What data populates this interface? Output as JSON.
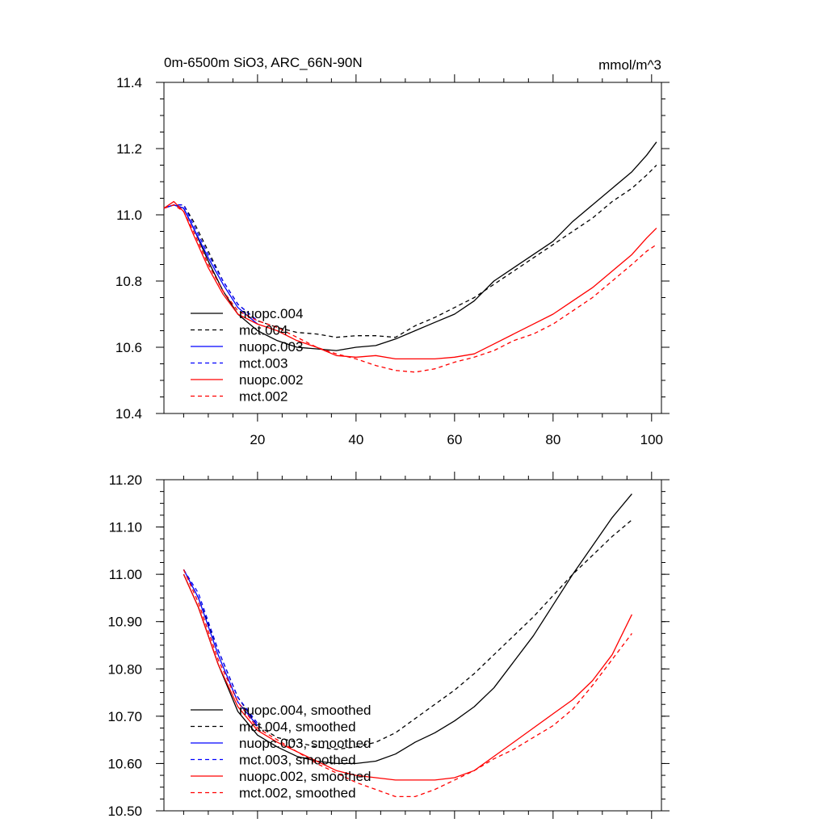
{
  "chart_data": [
    {
      "type": "line",
      "title": "0m-6500m SiO3, ARC_66N-90N",
      "units": "mmol/m^3",
      "xlabel": "",
      "ylabel": "",
      "xlim": [
        1,
        102
      ],
      "ylim": [
        10.4,
        11.4
      ],
      "xticks": [
        20,
        40,
        60,
        80,
        100
      ],
      "xtick_labels": [
        "20",
        "40",
        "60",
        "80",
        "100"
      ],
      "yticks": [
        10.4,
        10.6,
        10.8,
        11.0,
        11.2,
        11.4
      ],
      "ytick_labels": [
        "10.4",
        "10.6",
        "10.8",
        "11.0",
        "11.2",
        "11.4"
      ],
      "grid": false,
      "legend_position": "lower-left",
      "series": [
        {
          "name": "nuopc.004",
          "color": "#000000",
          "dash": "solid",
          "x": [
            1,
            3,
            5,
            7,
            10,
            13,
            16,
            20,
            24,
            28,
            32,
            36,
            40,
            44,
            48,
            52,
            56,
            60,
            64,
            68,
            72,
            76,
            80,
            84,
            88,
            92,
            96,
            99,
            101
          ],
          "y": [
            11.02,
            11.03,
            11.02,
            10.96,
            10.86,
            10.77,
            10.7,
            10.65,
            10.62,
            10.6,
            10.595,
            10.59,
            10.6,
            10.605,
            10.625,
            10.65,
            10.675,
            10.7,
            10.74,
            10.8,
            10.84,
            10.88,
            10.92,
            10.98,
            11.03,
            11.08,
            11.13,
            11.18,
            11.22
          ]
        },
        {
          "name": "mct.004",
          "color": "#000000",
          "dash": "dashed",
          "x": [
            1,
            3,
            5,
            7,
            10,
            13,
            16,
            20,
            24,
            28,
            32,
            36,
            40,
            44,
            48,
            52,
            56,
            60,
            64,
            68,
            72,
            76,
            80,
            84,
            88,
            92,
            96,
            99,
            101
          ],
          "y": [
            11.02,
            11.03,
            11.03,
            10.98,
            10.89,
            10.8,
            10.73,
            10.68,
            10.66,
            10.645,
            10.64,
            10.63,
            10.635,
            10.635,
            10.63,
            10.665,
            10.69,
            10.72,
            10.75,
            10.79,
            10.83,
            10.87,
            10.91,
            10.95,
            10.99,
            11.04,
            11.08,
            11.12,
            11.15
          ]
        },
        {
          "name": "nuopc.003",
          "color": "#0000ff",
          "dash": "solid",
          "x": [
            1,
            3,
            5,
            7,
            10,
            13,
            16,
            20
          ],
          "y": [
            11.02,
            11.03,
            11.02,
            10.96,
            10.87,
            10.79,
            10.72,
            10.67
          ]
        },
        {
          "name": "mct.003",
          "color": "#0000ff",
          "dash": "dashed",
          "x": [
            1,
            3,
            5,
            7,
            10,
            13,
            16,
            20
          ],
          "y": [
            11.02,
            11.03,
            11.03,
            10.97,
            10.88,
            10.8,
            10.73,
            10.68
          ]
        },
        {
          "name": "nuopc.002",
          "color": "#ff0000",
          "dash": "solid",
          "x": [
            1,
            3,
            5,
            7,
            10,
            13,
            16,
            20,
            24,
            28,
            32,
            36,
            40,
            44,
            48,
            52,
            56,
            60,
            64,
            68,
            72,
            76,
            80,
            84,
            88,
            92,
            96,
            99,
            101
          ],
          "y": [
            11.02,
            11.04,
            11.01,
            10.94,
            10.84,
            10.76,
            10.7,
            10.67,
            10.65,
            10.62,
            10.6,
            10.575,
            10.57,
            10.575,
            10.565,
            10.565,
            10.565,
            10.57,
            10.58,
            10.61,
            10.64,
            10.67,
            10.7,
            10.74,
            10.78,
            10.83,
            10.88,
            10.93,
            10.96
          ]
        },
        {
          "name": "mct.002",
          "color": "#ff0000",
          "dash": "dashed",
          "x": [
            1,
            3,
            5,
            7,
            10,
            13,
            16,
            20,
            24,
            28,
            32,
            36,
            40,
            44,
            48,
            52,
            56,
            60,
            64,
            68,
            72,
            76,
            80,
            84,
            88,
            92,
            96,
            99,
            101
          ],
          "y": [
            11.02,
            11.03,
            11.01,
            10.95,
            10.85,
            10.77,
            10.71,
            10.68,
            10.66,
            10.63,
            10.6,
            10.58,
            10.565,
            10.545,
            10.53,
            10.525,
            10.535,
            10.555,
            10.57,
            10.59,
            10.62,
            10.64,
            10.67,
            10.71,
            10.75,
            10.8,
            10.85,
            10.89,
            10.91
          ]
        }
      ]
    },
    {
      "type": "line",
      "title": "",
      "xlabel": "",
      "ylabel": "",
      "xlim": [
        1,
        102
      ],
      "ylim": [
        10.5,
        11.2
      ],
      "xticks": [
        20,
        40,
        60,
        80,
        100
      ],
      "xtick_labels": [],
      "yticks": [
        10.5,
        10.6,
        10.7,
        10.8,
        10.9,
        11.0,
        11.1,
        11.2
      ],
      "ytick_labels": [
        "10.50",
        "10.60",
        "10.70",
        "10.80",
        "10.90",
        "11.00",
        "11.10",
        "11.20"
      ],
      "grid": false,
      "legend_position": "lower-left",
      "series": [
        {
          "name": "nuopc.004, smoothed",
          "color": "#000000",
          "dash": "solid",
          "x": [
            5,
            8,
            12,
            16,
            20,
            24,
            28,
            32,
            36,
            40,
            44,
            48,
            52,
            56,
            60,
            64,
            68,
            72,
            76,
            80,
            84,
            88,
            92,
            96
          ],
          "y": [
            11.0,
            10.93,
            10.81,
            10.71,
            10.66,
            10.635,
            10.615,
            10.605,
            10.6,
            10.6,
            10.605,
            10.62,
            10.645,
            10.665,
            10.69,
            10.72,
            10.76,
            10.815,
            10.87,
            10.935,
            11.0,
            11.06,
            11.12,
            11.17
          ]
        },
        {
          "name": "mct.004, smoothed",
          "color": "#000000",
          "dash": "dashed",
          "x": [
            5,
            8,
            12,
            16,
            20,
            24,
            28,
            32,
            36,
            40,
            44,
            48,
            52,
            56,
            60,
            64,
            68,
            72,
            76,
            80,
            84,
            88,
            92,
            96
          ],
          "y": [
            11.01,
            10.95,
            10.84,
            10.74,
            10.68,
            10.655,
            10.645,
            10.635,
            10.63,
            10.635,
            10.645,
            10.665,
            10.695,
            10.725,
            10.755,
            10.79,
            10.83,
            10.87,
            10.91,
            10.955,
            11.0,
            11.04,
            11.08,
            11.115
          ]
        },
        {
          "name": "nuopc.003, smoothed",
          "color": "#0000ff",
          "dash": "solid",
          "x": [
            5,
            8,
            12,
            16,
            20
          ],
          "y": [
            11.01,
            10.95,
            10.83,
            10.73,
            10.68
          ]
        },
        {
          "name": "mct.003, smoothed",
          "color": "#0000ff",
          "dash": "dashed",
          "x": [
            5,
            8,
            12,
            16,
            20
          ],
          "y": [
            11.01,
            10.96,
            10.84,
            10.74,
            10.685
          ]
        },
        {
          "name": "nuopc.002, smoothed",
          "color": "#ff0000",
          "dash": "solid",
          "x": [
            5,
            8,
            12,
            16,
            20,
            24,
            28,
            32,
            36,
            40,
            44,
            48,
            52,
            56,
            60,
            64,
            68,
            72,
            76,
            80,
            84,
            88,
            92,
            96
          ],
          "y": [
            11.0,
            10.93,
            10.81,
            10.72,
            10.67,
            10.645,
            10.625,
            10.605,
            10.585,
            10.575,
            10.57,
            10.565,
            10.565,
            10.565,
            10.57,
            10.585,
            10.615,
            10.645,
            10.675,
            10.705,
            10.735,
            10.775,
            10.83,
            10.915
          ]
        },
        {
          "name": "mct.002, smoothed",
          "color": "#ff0000",
          "dash": "dashed",
          "x": [
            5,
            8,
            12,
            16,
            20,
            24,
            28,
            32,
            36,
            40,
            44,
            48,
            52,
            56,
            60,
            64,
            68,
            72,
            76,
            80,
            84,
            88,
            92,
            96
          ],
          "y": [
            11.01,
            10.94,
            10.82,
            10.73,
            10.675,
            10.65,
            10.625,
            10.6,
            10.58,
            10.56,
            10.545,
            10.53,
            10.53,
            10.545,
            10.565,
            10.585,
            10.61,
            10.63,
            10.655,
            10.68,
            10.715,
            10.765,
            10.82,
            10.875
          ]
        }
      ]
    }
  ]
}
